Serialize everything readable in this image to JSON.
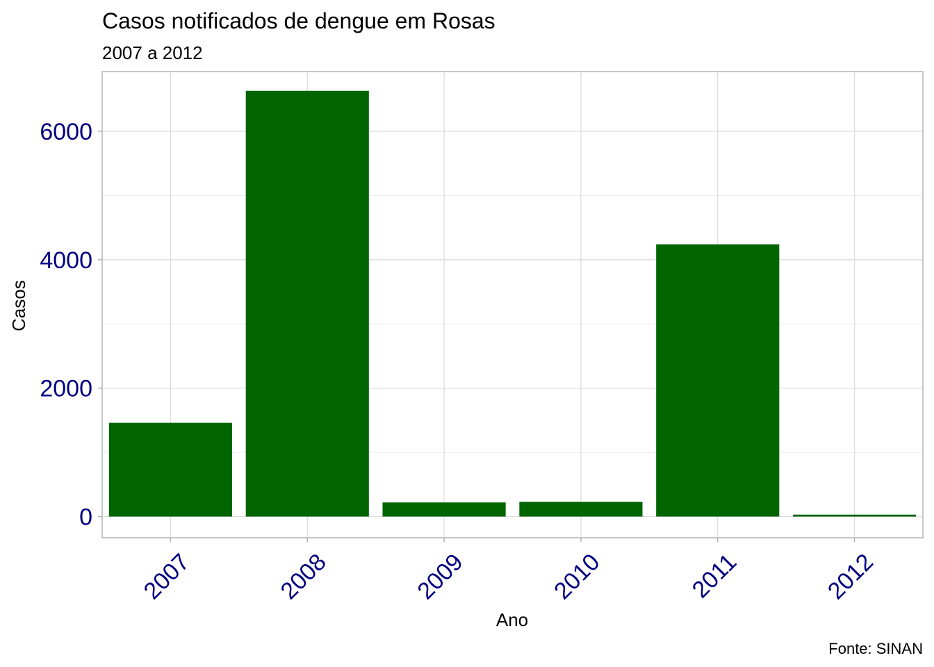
{
  "chart_data": {
    "type": "bar",
    "title": "Casos notificados de dengue em Rosas",
    "subtitle": "2007 a 2012",
    "xlabel": "Ano",
    "ylabel": "Casos",
    "caption": "Fonte: SINAN",
    "categories": [
      "2007",
      "2008",
      "2009",
      "2010",
      "2011",
      "2012"
    ],
    "values": [
      1460,
      6630,
      220,
      230,
      4240,
      30
    ],
    "ylim": [
      -330,
      6930
    ],
    "yticks": [
      0,
      2000,
      4000,
      6000
    ],
    "yticks_labels": [
      "0",
      "2000",
      "4000",
      "6000"
    ],
    "bar_color": "#006400",
    "tick_label_color": "#000080",
    "grid": true,
    "legend": "none"
  }
}
